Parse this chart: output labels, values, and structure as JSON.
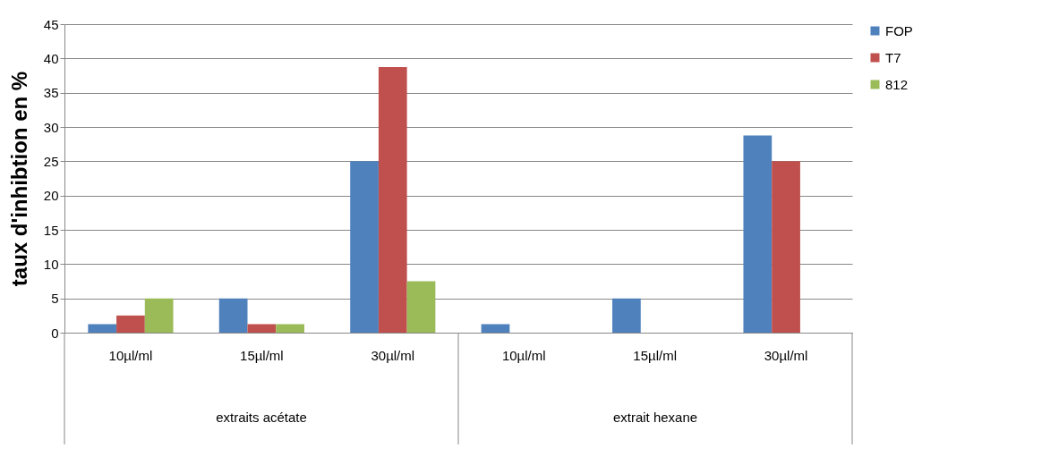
{
  "chart_data": {
    "type": "bar",
    "ylabel": "taux d'inhibtion en %",
    "categories": [
      "10µl/ml",
      "15µl/ml",
      "30µl/ml",
      "10µl/ml",
      "15µl/ml",
      "30µl/ml"
    ],
    "series": [
      {
        "name": "FOP",
        "color": "#4f81bd",
        "values": [
          1.25,
          5,
          25,
          1.25,
          5,
          28.75
        ]
      },
      {
        "name": "T7",
        "color": "#c0504d",
        "values": [
          2.5,
          1.25,
          38.75,
          null,
          null,
          25
        ]
      },
      {
        "name": "812",
        "color": "#9bbb59",
        "values": [
          5,
          1.25,
          7.5,
          null,
          null,
          null
        ]
      }
    ],
    "annotations": [
      "extraits acétate",
      "extrait hexane"
    ],
    "ylim": [
      0,
      45
    ],
    "yticks": [
      0,
      5,
      10,
      15,
      20,
      25,
      30,
      35,
      40,
      45
    ],
    "grid": "y",
    "legend": "right"
  }
}
